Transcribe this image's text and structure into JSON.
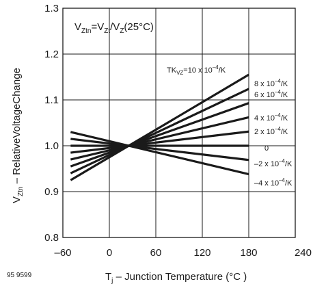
{
  "figure_id": "95 9599",
  "chart_data": {
    "type": "line",
    "annotation": {
      "base": "V",
      "sub1": "Ztn",
      "eq": "=V",
      "sub2": "Zt",
      "mid": "/V",
      "sub3": "Z",
      "tail": "(25°C)"
    },
    "xlabel": "T",
    "xlabel_sub": "j",
    "xlabel_rest": " – Junction Temperature (°C )",
    "ylabel": "V",
    "ylabel_sub": "Ztn",
    "ylabel_rest": " – RelativeVoltageChange",
    "xlim": [
      -60,
      240
    ],
    "ylim": [
      0.8,
      1.3
    ],
    "xticks": [
      "–60",
      "0",
      "60",
      "120",
      "180",
      "240"
    ],
    "yticks": [
      "0.8",
      "0.9",
      "1.0",
      "1.1",
      "1.2",
      "1.3"
    ],
    "grid": true,
    "series": [
      {
        "name": "TKVZ=10 x 10⁻⁴/K",
        "x": [
          -50,
          180
        ],
        "y": [
          0.925,
          1.155
        ]
      },
      {
        "name": "8 x 10⁻⁴/K",
        "x": [
          -50,
          180
        ],
        "y": [
          0.94,
          1.124
        ]
      },
      {
        "name": "6 x 10⁻⁴/K",
        "x": [
          -50,
          180
        ],
        "y": [
          0.955,
          1.093
        ]
      },
      {
        "name": "4 x 10⁻⁴/K",
        "x": [
          -50,
          180
        ],
        "y": [
          0.97,
          1.062
        ]
      },
      {
        "name": "2 x 10⁻⁴/K",
        "x": [
          -50,
          180
        ],
        "y": [
          0.985,
          1.031
        ]
      },
      {
        "name": "0",
        "x": [
          -50,
          180
        ],
        "y": [
          1.0,
          1.0
        ]
      },
      {
        "name": "–2 x 10⁻⁴/K",
        "x": [
          -50,
          180
        ],
        "y": [
          1.015,
          0.969
        ]
      },
      {
        "name": "–4 x 10⁻⁴/K",
        "x": [
          -50,
          180
        ],
        "y": [
          1.03,
          0.938
        ]
      }
    ],
    "labels": [
      {
        "series": 0,
        "pre": "TK",
        "sub": "VZ",
        "mid": "=10 x 10",
        "sup": "–4",
        "post": "/K"
      },
      {
        "series": 1,
        "pre": "",
        "sub": "",
        "mid": "8 x 10",
        "sup": "–4",
        "post": "/K"
      },
      {
        "series": 2,
        "pre": "",
        "sub": "",
        "mid": "6 x 10",
        "sup": "–4",
        "post": "/K"
      },
      {
        "series": 3,
        "pre": "",
        "sub": "",
        "mid": "4 x 10",
        "sup": "–4",
        "post": "/K"
      },
      {
        "series": 4,
        "pre": "",
        "sub": "",
        "mid": "2 x 10",
        "sup": "–4",
        "post": "/K"
      },
      {
        "series": 5,
        "pre": "",
        "sub": "",
        "mid": "0",
        "sup": "",
        "post": ""
      },
      {
        "series": 6,
        "pre": "",
        "sub": "",
        "mid": "–2 x 10",
        "sup": "–4",
        "post": "/K"
      },
      {
        "series": 7,
        "pre": "",
        "sub": "",
        "mid": "–4 x 10",
        "sup": "–4",
        "post": "/K"
      }
    ],
    "colors": {
      "line": "#1a1a1a",
      "grid": "#1a1a1a",
      "background": "#ffffff"
    }
  }
}
